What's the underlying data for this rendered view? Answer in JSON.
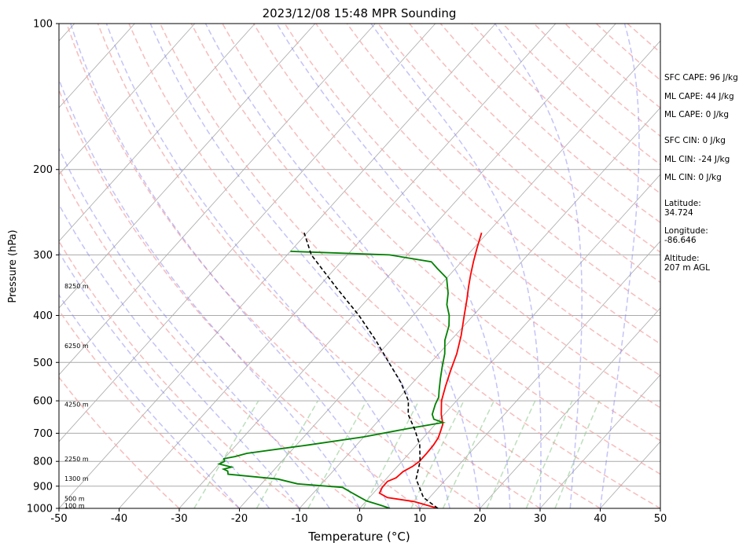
{
  "chart_data": {
    "type": "line",
    "title": "2023/12/08 15:48 MPR Sounding",
    "xlabel": "Temperature (°C)",
    "ylabel": "Pressure (hPa)",
    "xlim": [
      -50,
      50
    ],
    "ylim": [
      1000,
      100
    ],
    "y_scale": "log",
    "skew_t": true,
    "grid": true,
    "x_ticks": [
      "-50",
      "-40",
      "-30",
      "-20",
      "-10",
      "0",
      "10",
      "20",
      "30",
      "40",
      "50"
    ],
    "y_ticks": [
      "1000",
      "900",
      "800",
      "700",
      "600",
      "500",
      "400",
      "300",
      "200",
      "100"
    ],
    "height_labels": [
      {
        "p": 987,
        "text": "100 m"
      },
      {
        "p": 955,
        "text": "500 m"
      },
      {
        "p": 868,
        "text": "1300 m"
      },
      {
        "p": 790,
        "text": "2250 m"
      },
      {
        "p": 610,
        "text": "4250 m"
      },
      {
        "p": 462,
        "text": "6250 m"
      },
      {
        "p": 348,
        "text": "8250 m"
      }
    ],
    "series": [
      {
        "name": "",
        "color": "#ff0000",
        "points": [
          [
            13,
            1000
          ],
          [
            8,
            968
          ],
          [
            3,
            950
          ],
          [
            1,
            930
          ],
          [
            0.6,
            905
          ],
          [
            0.6,
            880
          ],
          [
            1.5,
            865
          ],
          [
            1.7,
            840
          ],
          [
            2.5,
            820
          ],
          [
            2.9,
            800
          ],
          [
            2.9,
            770
          ],
          [
            2.8,
            740
          ],
          [
            2.5,
            715
          ],
          [
            1.8,
            690
          ],
          [
            1.2,
            670
          ],
          [
            -0.5,
            640
          ],
          [
            -2.5,
            600
          ],
          [
            -4,
            560
          ],
          [
            -5.5,
            520
          ],
          [
            -7,
            480
          ],
          [
            -9,
            440
          ],
          [
            -11.5,
            400
          ],
          [
            -13.5,
            370
          ],
          [
            -15,
            350
          ],
          [
            -16.5,
            330
          ],
          [
            -18,
            310
          ],
          [
            -19.5,
            290
          ],
          [
            -21,
            270
          ]
        ]
      },
      {
        "name": "",
        "color": "#008000",
        "points": [
          [
            5,
            1000
          ],
          [
            3,
            985
          ],
          [
            0,
            965
          ],
          [
            -2,
            945
          ],
          [
            -4,
            925
          ],
          [
            -6,
            905
          ],
          [
            -14,
            890
          ],
          [
            -18,
            870
          ],
          [
            -27,
            850
          ],
          [
            -27.5,
            838
          ],
          [
            -28.5,
            830
          ],
          [
            -27.5,
            822
          ],
          [
            -30,
            810
          ],
          [
            -29.5,
            800
          ],
          [
            -30,
            790
          ],
          [
            -28.5,
            782
          ],
          [
            -27,
            770
          ],
          [
            -18,
            740
          ],
          [
            -10,
            712
          ],
          [
            -4,
            685
          ],
          [
            1,
            665
          ],
          [
            -1,
            655
          ],
          [
            -2,
            640
          ],
          [
            -3,
            610
          ],
          [
            -3.5,
            590
          ],
          [
            -4.5,
            570
          ],
          [
            -6,
            540
          ],
          [
            -7.5,
            510
          ],
          [
            -9,
            480
          ],
          [
            -11,
            450
          ],
          [
            -12.5,
            420
          ],
          [
            -14,
            400
          ],
          [
            -16,
            380
          ],
          [
            -17.5,
            360
          ],
          [
            -19.5,
            340
          ],
          [
            -20,
            335
          ],
          [
            -23,
            320
          ],
          [
            -25,
            310
          ],
          [
            -33,
            300
          ],
          [
            -50,
            295
          ]
        ]
      },
      {
        "name": "",
        "color": "#000000",
        "dashed": true,
        "points": [
          [
            13,
            1000
          ],
          [
            9,
            950
          ],
          [
            5,
            870
          ],
          [
            3,
            800
          ],
          [
            0.5,
            740
          ],
          [
            -2.5,
            690
          ],
          [
            -6,
            640
          ],
          [
            -8,
            600
          ],
          [
            -12,
            550
          ],
          [
            -17,
            500
          ],
          [
            -22.5,
            450
          ],
          [
            -29,
            400
          ],
          [
            -37,
            350
          ],
          [
            -46,
            300
          ],
          [
            -50.5,
            270
          ]
        ]
      }
    ],
    "side_info": {
      "cape": [
        "SFC CAPE: 96 J/kg",
        "ML CAPE: 44 J/kg",
        "ML CAPE: 0 J/kg"
      ],
      "cin": [
        "SFC CIN: 0 J/kg",
        "ML CIN: -24 J/kg",
        "ML CIN: 0 J/kg"
      ],
      "latitude": [
        "Latitude:",
        "34.724"
      ],
      "longitude": [
        "Longitude:",
        "-86.646"
      ],
      "altitude": [
        "Altitude:",
        "207 m AGL"
      ]
    },
    "colors": {
      "dry_adiabat": "#f4a6a6",
      "moist_adiabat": "#7b7bf0",
      "mixing_ratio": "#8fc98f",
      "isotherm": "#aaaaaa",
      "isobar": "#aaaaaa"
    }
  }
}
